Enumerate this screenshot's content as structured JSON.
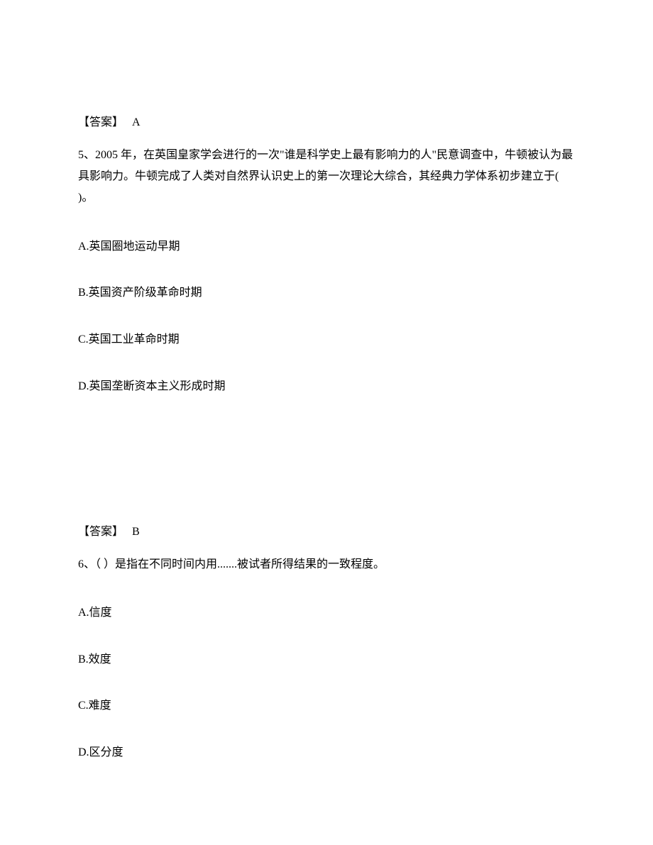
{
  "q4_answer": {
    "label": "【答案】",
    "value": "A"
  },
  "q5": {
    "stem": "5、2005 年，在英国皇家学会进行的一次\"谁是科学史上最有影响力的人\"民意调查中，牛顿被认为最具影响力。牛顿完成了人类对自然界认识史上的第一次理论大综合，其经典力学体系初步建立于( )。",
    "options": {
      "A": "A.英国圈地运动早期",
      "B": "B.英国资产阶级革命时期",
      "C": "C.英国工业革命时期",
      "D": "D.英国垄断资本主义形成时期"
    },
    "answer": {
      "label": "【答案】",
      "value": "B"
    }
  },
  "q6": {
    "stem": "6、（ ）是指在不同时间内用.......被试者所得结果的一致程度。",
    "options": {
      "A": "A.信度",
      "B": "B.效度",
      "C": "C.难度",
      "D": "D.区分度"
    }
  }
}
